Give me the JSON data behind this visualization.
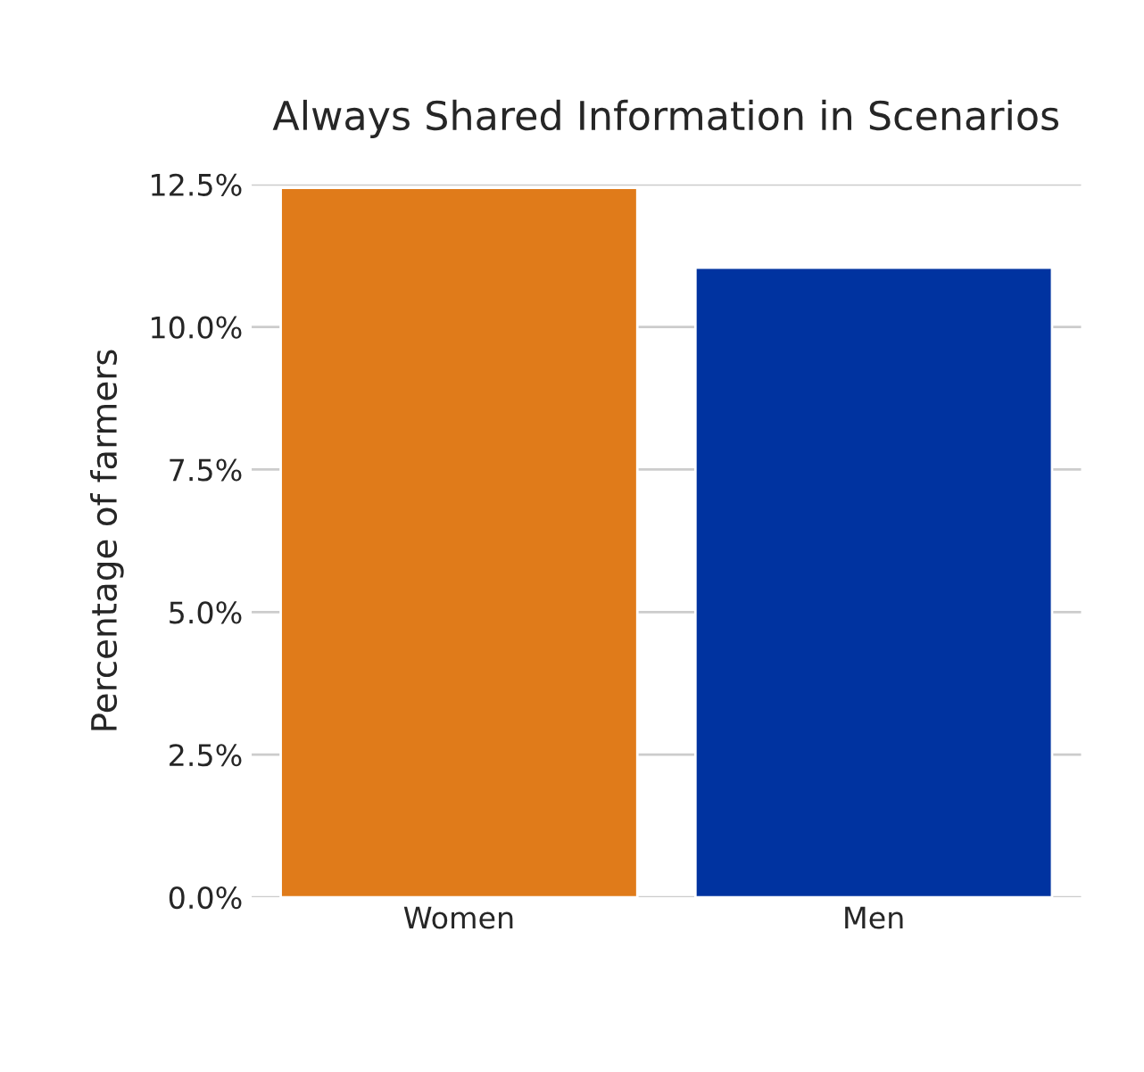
{
  "chart_data": {
    "type": "bar",
    "title": "Always Shared Information in Scenarios",
    "ylabel": "Percentage of farmers",
    "categories": [
      "Women",
      "Men"
    ],
    "values": [
      12.44,
      11.04
    ],
    "colors": [
      "#e07b1a",
      "#0033a0"
    ],
    "ylim": [
      0,
      12.5
    ],
    "yticks": [
      {
        "value": 0,
        "label": "0.0%"
      },
      {
        "value": 2.5,
        "label": "2.5%"
      },
      {
        "value": 5,
        "label": "5.0%"
      },
      {
        "value": 7.5,
        "label": "7.5%"
      },
      {
        "value": 10,
        "label": "10.0%"
      },
      {
        "value": 12.5,
        "label": "12.5%"
      }
    ],
    "grid": "y",
    "legend": false
  }
}
